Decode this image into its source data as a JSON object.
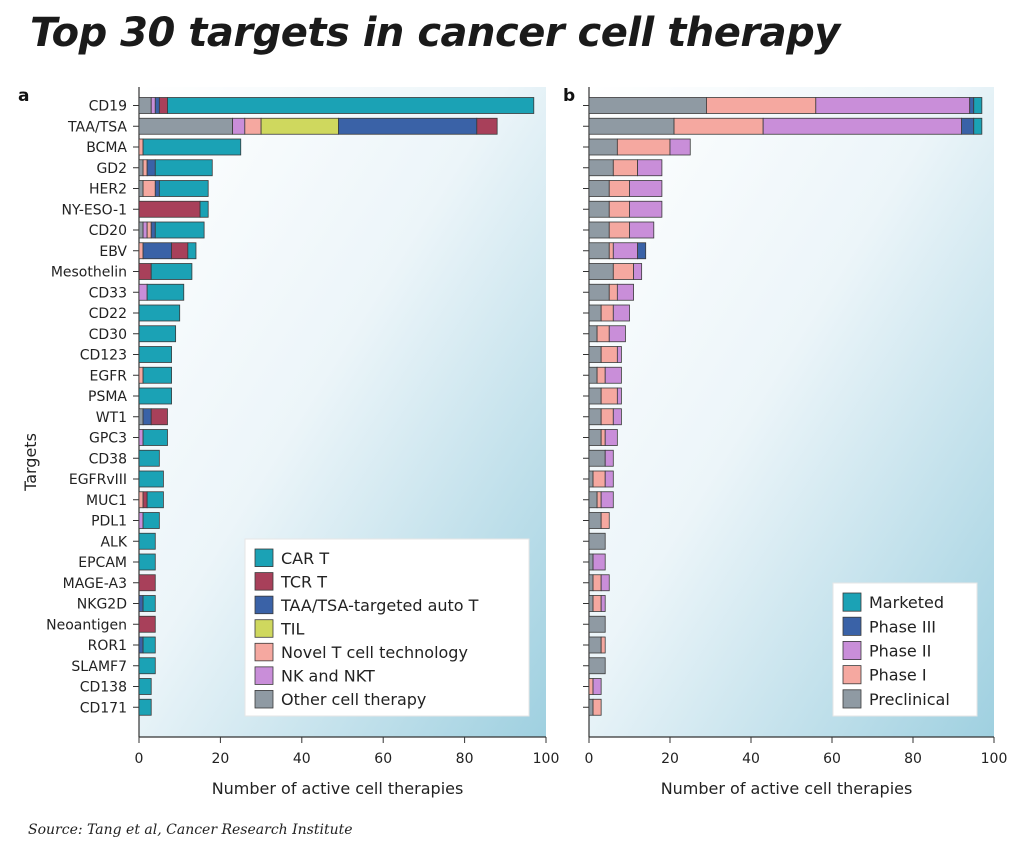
{
  "title": "Top 30 targets in cancer cell therapy",
  "source": "Source: Tang et al, Cancer Research Institute",
  "chart_data": [
    {
      "type": "bar",
      "orientation": "horizontal",
      "stacked": true,
      "panel": "a",
      "xlabel": "Number of active cell therapies",
      "ylabel": "Targets",
      "xlim": [
        0,
        100
      ],
      "xticks": [
        0,
        20,
        40,
        60,
        80,
        100
      ],
      "grid": false,
      "legend_position": "bottom-right",
      "categories": [
        "CD19",
        "TAA/TSA",
        "BCMA",
        "GD2",
        "HER2",
        "NY-ESO-1",
        "CD20",
        "EBV",
        "Mesothelin",
        "CD33",
        "CD22",
        "CD30",
        "CD123",
        "EGFR",
        "PSMA",
        "WT1",
        "GPC3",
        "CD38",
        "EGFRvIII",
        "MUC1",
        "PDL1",
        "ALK",
        "EPCAM",
        "MAGE-A3",
        "NKG2D",
        "Neoantigen",
        "ROR1",
        "SLAMF7",
        "CD138",
        "CD171"
      ],
      "series": [
        {
          "name": "Other cell therapy",
          "color": "#8f9aa3",
          "values": [
            3,
            23,
            0,
            1,
            1,
            0,
            1,
            0,
            0,
            0,
            0,
            0,
            0,
            0,
            0,
            1,
            0,
            0,
            0,
            0,
            0,
            0,
            0,
            0,
            0,
            0,
            0,
            0,
            0,
            0
          ]
        },
        {
          "name": "NK and NKT",
          "color": "#c98ed9",
          "values": [
            1,
            3,
            0,
            0,
            0,
            0,
            1,
            0,
            0,
            2,
            0,
            0,
            0,
            0,
            0,
            0,
            1,
            0,
            0,
            0,
            1,
            0,
            0,
            0,
            0,
            0,
            0,
            0,
            0,
            0
          ]
        },
        {
          "name": "Novel T cell technology",
          "color": "#f5a8a0",
          "values": [
            0,
            4,
            1,
            1,
            3,
            0,
            1,
            1,
            0,
            0,
            0,
            0,
            0,
            1,
            0,
            0,
            0,
            0,
            0,
            1,
            0,
            0,
            0,
            0,
            0,
            0,
            0,
            0,
            0,
            0
          ]
        },
        {
          "name": "TIL",
          "color": "#cfd85e",
          "values": [
            0,
            19,
            0,
            0,
            0,
            0,
            0,
            0,
            0,
            0,
            0,
            0,
            0,
            0,
            0,
            0,
            0,
            0,
            0,
            0,
            0,
            0,
            0,
            0,
            0,
            0,
            0,
            0,
            0,
            0
          ]
        },
        {
          "name": "TAA/TSA-targeted auto T",
          "color": "#3a62a7",
          "values": [
            1,
            34,
            0,
            2,
            1,
            0,
            1,
            7,
            0,
            0,
            0,
            0,
            0,
            0,
            0,
            2,
            0,
            0,
            0,
            0,
            0,
            0,
            0,
            0,
            1,
            0,
            1,
            0,
            0,
            0
          ]
        },
        {
          "name": "TCR T",
          "color": "#a8405a",
          "values": [
            2,
            5,
            0,
            0,
            0,
            15,
            0,
            4,
            3,
            0,
            0,
            0,
            0,
            0,
            0,
            4,
            0,
            0,
            0,
            1,
            0,
            0,
            0,
            4,
            0,
            4,
            0,
            0,
            0,
            0
          ]
        },
        {
          "name": "CAR T",
          "color": "#1ba2b5",
          "values": [
            90,
            0,
            24,
            14,
            12,
            2,
            12,
            2,
            10,
            9,
            10,
            9,
            8,
            7,
            8,
            0,
            6,
            5,
            6,
            4,
            4,
            4,
            4,
            0,
            3,
            0,
            3,
            4,
            3,
            3
          ]
        }
      ]
    },
    {
      "type": "bar",
      "orientation": "horizontal",
      "stacked": true,
      "panel": "b",
      "xlabel": "Number of active cell therapies",
      "xlim": [
        0,
        100
      ],
      "xticks": [
        0,
        20,
        40,
        60,
        80,
        100
      ],
      "grid": false,
      "legend_position": "bottom-right",
      "categories": [
        "CD19",
        "TAA/TSA",
        "BCMA",
        "GD2",
        "HER2",
        "NY-ESO-1",
        "CD20",
        "EBV",
        "Mesothelin",
        "CD33",
        "CD22",
        "CD30",
        "CD123",
        "EGFR",
        "PSMA",
        "WT1",
        "GPC3",
        "CD38",
        "EGFRvIII",
        "MUC1",
        "PDL1",
        "ALK",
        "EPCAM",
        "MAGE-A3",
        "NKG2D",
        "Neoantigen",
        "ROR1",
        "SLAMF7",
        "CD138",
        "CD171"
      ],
      "series": [
        {
          "name": "Preclinical",
          "color": "#8f9aa3",
          "values": [
            29,
            21,
            7,
            6,
            5,
            5,
            5,
            5,
            6,
            5,
            3,
            2,
            3,
            2,
            3,
            3,
            3,
            4,
            1,
            2,
            3,
            4,
            1,
            1,
            1,
            4,
            3,
            4,
            0,
            1
          ]
        },
        {
          "name": "Phase I",
          "color": "#f5a8a0",
          "values": [
            27,
            22,
            13,
            6,
            5,
            5,
            5,
            1,
            5,
            2,
            3,
            3,
            4,
            2,
            4,
            3,
            1,
            0,
            3,
            1,
            2,
            0,
            0,
            2,
            2,
            0,
            1,
            0,
            1,
            2
          ]
        },
        {
          "name": "Phase II",
          "color": "#c98ed9",
          "values": [
            38,
            49,
            5,
            6,
            8,
            8,
            6,
            6,
            2,
            4,
            4,
            4,
            1,
            4,
            1,
            2,
            3,
            2,
            2,
            3,
            0,
            0,
            3,
            2,
            1,
            0,
            0,
            0,
            2,
            0
          ]
        },
        {
          "name": "Phase III",
          "color": "#3a62a7",
          "values": [
            1,
            3,
            0,
            0,
            0,
            0,
            0,
            2,
            0,
            0,
            0,
            0,
            0,
            0,
            0,
            0,
            0,
            0,
            0,
            0,
            0,
            0,
            0,
            0,
            0,
            0,
            0,
            0,
            0,
            0
          ]
        },
        {
          "name": "Marketed",
          "color": "#1ba2b5",
          "values": [
            2,
            2,
            0,
            0,
            0,
            0,
            0,
            0,
            0,
            0,
            0,
            0,
            0,
            0,
            0,
            0,
            0,
            0,
            0,
            0,
            0,
            0,
            0,
            0,
            0,
            0,
            0,
            0,
            0,
            0
          ]
        }
      ]
    }
  ]
}
